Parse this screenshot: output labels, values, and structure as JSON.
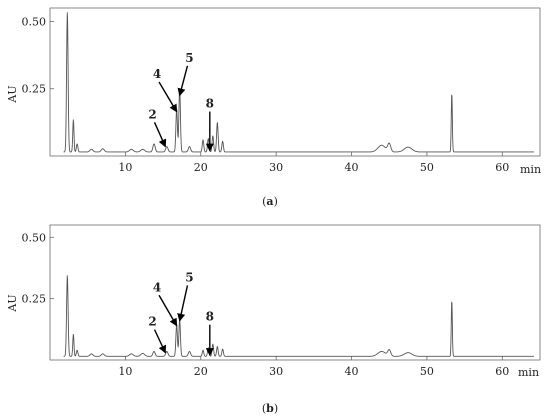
{
  "chart_data": [
    {
      "type": "line",
      "panel": "a",
      "caption": "(a)",
      "caption_letter": "a",
      "ylabel": "AU",
      "xunit": "min",
      "xlim": [
        0,
        65
      ],
      "ylim": [
        0,
        0.55
      ],
      "xticks": [
        10,
        20,
        30,
        40,
        50,
        60
      ],
      "yticks": [
        0.25,
        0.5
      ],
      "ytick_labels": [
        "0.25",
        "0.50"
      ],
      "baseline": 0.015,
      "peaks": [
        {
          "t": 2.3,
          "h": 0.52,
          "w": 0.1
        },
        {
          "t": 3.1,
          "h": 0.12,
          "w": 0.08
        },
        {
          "t": 3.6,
          "h": 0.03,
          "w": 0.1
        },
        {
          "t": 5.5,
          "h": 0.01,
          "w": 0.2
        },
        {
          "t": 7.0,
          "h": 0.012,
          "w": 0.2
        },
        {
          "t": 10.8,
          "h": 0.01,
          "w": 0.25
        },
        {
          "t": 12.3,
          "h": 0.01,
          "w": 0.25
        },
        {
          "t": 13.8,
          "h": 0.03,
          "w": 0.15
        },
        {
          "t": 15.5,
          "h": 0.02,
          "w": 0.15
        },
        {
          "t": 16.8,
          "h": 0.16,
          "w": 0.1
        },
        {
          "t": 17.2,
          "h": 0.24,
          "w": 0.1
        },
        {
          "t": 18.5,
          "h": 0.02,
          "w": 0.15
        },
        {
          "t": 20.3,
          "h": 0.045,
          "w": 0.1
        },
        {
          "t": 21.0,
          "h": 0.05,
          "w": 0.1
        },
        {
          "t": 21.6,
          "h": 0.06,
          "w": 0.1
        },
        {
          "t": 22.2,
          "h": 0.11,
          "w": 0.1
        },
        {
          "t": 22.9,
          "h": 0.04,
          "w": 0.1
        },
        {
          "t": 44.0,
          "h": 0.025,
          "w": 0.5
        },
        {
          "t": 45.0,
          "h": 0.03,
          "w": 0.2
        },
        {
          "t": 47.5,
          "h": 0.018,
          "w": 0.5
        },
        {
          "t": 53.3,
          "h": 0.22,
          "w": 0.07
        }
      ],
      "annotations": [
        {
          "label": "4",
          "target_t": 16.8,
          "target_y": 0.165,
          "text_t": 14.2,
          "text_y": 0.29
        },
        {
          "label": "5",
          "target_t": 17.2,
          "target_y": 0.225,
          "text_t": 18.5,
          "text_y": 0.35
        },
        {
          "label": "2",
          "target_t": 15.3,
          "target_y": 0.035,
          "text_t": 13.6,
          "text_y": 0.14
        },
        {
          "label": "8",
          "target_t": 21.2,
          "target_y": 0.02,
          "text_t": 21.2,
          "text_y": 0.18
        }
      ]
    },
    {
      "type": "line",
      "panel": "b",
      "caption": "(b)",
      "caption_letter": "b",
      "ylabel": "AU",
      "xunit": "min",
      "xlim": [
        0,
        65
      ],
      "ylim": [
        0,
        0.55
      ],
      "xticks": [
        10,
        20,
        30,
        40,
        50,
        60
      ],
      "yticks": [
        0.25,
        0.5
      ],
      "ytick_labels": [
        "0.25",
        "0.50"
      ],
      "baseline": 0.015,
      "peaks": [
        {
          "t": 2.3,
          "h": 0.33,
          "w": 0.1
        },
        {
          "t": 3.1,
          "h": 0.09,
          "w": 0.08
        },
        {
          "t": 3.6,
          "h": 0.025,
          "w": 0.1
        },
        {
          "t": 5.5,
          "h": 0.01,
          "w": 0.2
        },
        {
          "t": 7.0,
          "h": 0.01,
          "w": 0.2
        },
        {
          "t": 10.8,
          "h": 0.01,
          "w": 0.25
        },
        {
          "t": 12.3,
          "h": 0.012,
          "w": 0.25
        },
        {
          "t": 13.8,
          "h": 0.02,
          "w": 0.15
        },
        {
          "t": 15.5,
          "h": 0.02,
          "w": 0.15
        },
        {
          "t": 16.8,
          "h": 0.13,
          "w": 0.1
        },
        {
          "t": 17.2,
          "h": 0.15,
          "w": 0.1
        },
        {
          "t": 18.5,
          "h": 0.02,
          "w": 0.15
        },
        {
          "t": 20.3,
          "h": 0.025,
          "w": 0.1
        },
        {
          "t": 21.0,
          "h": 0.035,
          "w": 0.1
        },
        {
          "t": 21.6,
          "h": 0.05,
          "w": 0.1
        },
        {
          "t": 22.2,
          "h": 0.04,
          "w": 0.1
        },
        {
          "t": 22.9,
          "h": 0.03,
          "w": 0.1
        },
        {
          "t": 44.0,
          "h": 0.02,
          "w": 0.5
        },
        {
          "t": 45.0,
          "h": 0.025,
          "w": 0.2
        },
        {
          "t": 47.5,
          "h": 0.015,
          "w": 0.5
        },
        {
          "t": 53.3,
          "h": 0.23,
          "w": 0.07
        }
      ],
      "annotations": [
        {
          "label": "4",
          "target_t": 16.8,
          "target_y": 0.14,
          "text_t": 14.2,
          "text_y": 0.28
        },
        {
          "label": "5",
          "target_t": 17.2,
          "target_y": 0.16,
          "text_t": 18.5,
          "text_y": 0.32
        },
        {
          "label": "2",
          "target_t": 15.3,
          "target_y": 0.03,
          "text_t": 13.6,
          "text_y": 0.14
        },
        {
          "label": "8",
          "target_t": 21.2,
          "target_y": 0.02,
          "text_t": 21.2,
          "text_y": 0.16
        }
      ]
    }
  ]
}
